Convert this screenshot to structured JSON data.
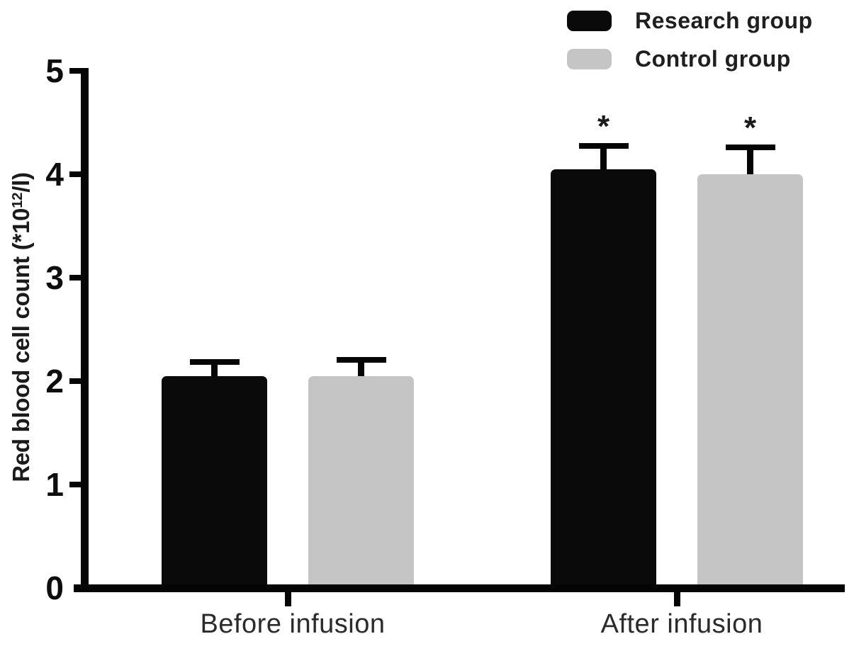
{
  "figure": {
    "background": "#ffffff"
  },
  "axes": {
    "y": {
      "label_prefix": "Red blood cell count (*10",
      "label_sup": "12",
      "label_suffix": "/l)",
      "tick_labels": [
        "0",
        "1",
        "2",
        "3",
        "4",
        "5"
      ],
      "range": [
        0,
        5
      ]
    },
    "x": {
      "category_labels": [
        "Before infusion",
        "After infusion"
      ]
    }
  },
  "chart_data": {
    "type": "bar",
    "title": "",
    "xlabel": "",
    "ylabel": "Red blood cell count (*10^12/l)",
    "categories": [
      "Before infusion",
      "After infusion"
    ],
    "series": [
      {
        "name": "Research group",
        "color": "#0a0a0a",
        "values": [
          2.05,
          4.05
        ],
        "errors_upper": [
          0.16,
          0.25
        ],
        "significance": [
          "",
          "*"
        ]
      },
      {
        "name": "Control group",
        "color": "#c5c5c5",
        "values": [
          2.05,
          4.0
        ],
        "errors_upper": [
          0.18,
          0.29
        ],
        "significance": [
          "",
          "*"
        ]
      }
    ],
    "ylim": [
      0,
      5
    ],
    "yticks": [
      0,
      1,
      2,
      3,
      4,
      5
    ],
    "grid": false,
    "error_bar_style": "upper-only",
    "legend_position": "top-right"
  }
}
